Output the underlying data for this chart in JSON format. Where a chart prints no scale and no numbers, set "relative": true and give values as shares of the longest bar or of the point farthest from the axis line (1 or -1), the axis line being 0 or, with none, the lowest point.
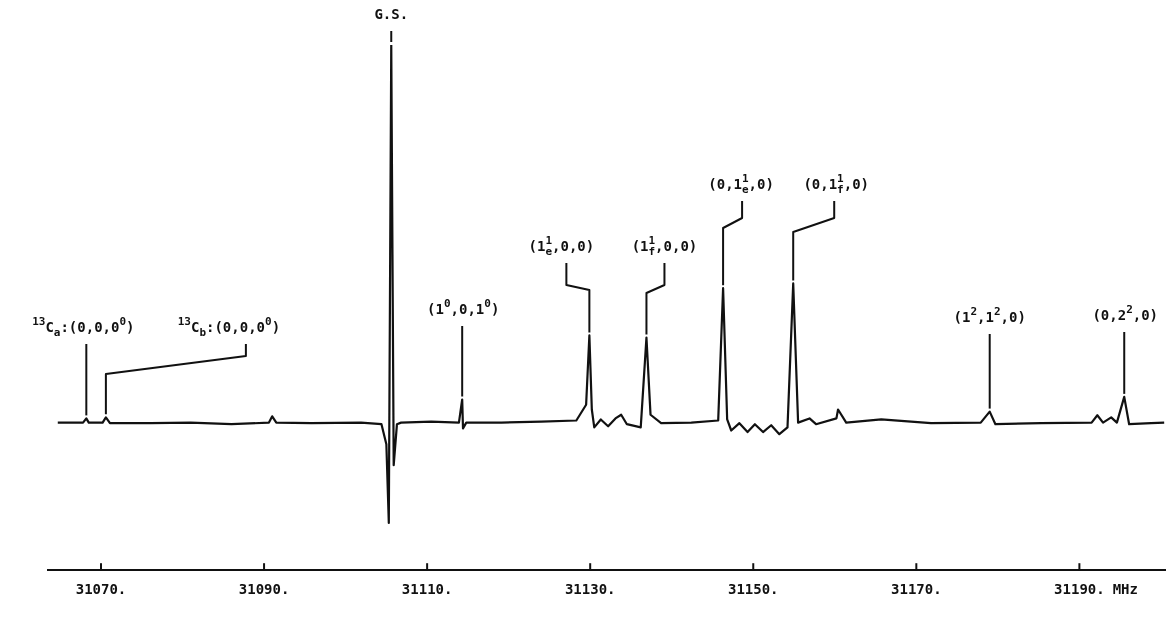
{
  "chart_data": {
    "type": "line",
    "relative": true,
    "color": "#111111",
    "marker": "none",
    "xlabel": "MHz",
    "xlim": [
      31063.5,
      31200.5
    ],
    "xticks": [
      {
        "value": 31070,
        "label": "31070."
      },
      {
        "value": 31090,
        "label": "31090."
      },
      {
        "value": 31110,
        "label": "31110."
      },
      {
        "value": 31130,
        "label": "31130."
      },
      {
        "value": 31150,
        "label": "31150."
      },
      {
        "value": 31170,
        "label": "31170."
      },
      {
        "value": 31190,
        "label": "31190."
      }
    ],
    "x": [
      31064.7,
      31067.8,
      31068.2,
      31068.5,
      31070.2,
      31070.6,
      31071.1,
      31076.1,
      31081.0,
      31086.0,
      31090.6,
      31091.0,
      31091.5,
      31095.8,
      31101.9,
      31104.4,
      31105.0,
      31105.3,
      31105.6,
      31105.9,
      31106.3,
      31106.8,
      31110.5,
      31113.9,
      31114.3,
      31114.4,
      31114.8,
      31119.1,
      31124.0,
      31128.3,
      31129.5,
      31129.9,
      31130.2,
      31130.5,
      31131.3,
      31132.2,
      31133.1,
      31133.8,
      31134.5,
      31136.2,
      31136.9,
      31137.4,
      31138.7,
      31142.4,
      31145.7,
      31146.3,
      31146.8,
      31147.3,
      31148.3,
      31149.3,
      31150.2,
      31151.2,
      31152.2,
      31153.2,
      31154.2,
      31154.9,
      31155.5,
      31156.9,
      31157.7,
      31160.2,
      31160.4,
      31161.4,
      31165.7,
      31171.8,
      31177.9,
      31179.0,
      31179.7,
      31185.3,
      31191.5,
      31192.2,
      31192.9,
      31193.9,
      31194.6,
      31195.5,
      31196.1,
      31198.8,
      31200.4
    ],
    "values": [
      0.281,
      0.281,
      0.289,
      0.281,
      0.281,
      0.291,
      0.28,
      0.28,
      0.281,
      0.278,
      0.281,
      0.293,
      0.281,
      0.28,
      0.281,
      0.278,
      0.24,
      0.09,
      1.0,
      0.2,
      0.278,
      0.281,
      0.283,
      0.281,
      0.325,
      0.27,
      0.281,
      0.281,
      0.283,
      0.285,
      0.315,
      0.447,
      0.306,
      0.272,
      0.287,
      0.274,
      0.289,
      0.296,
      0.278,
      0.272,
      0.443,
      0.296,
      0.28,
      0.281,
      0.285,
      0.537,
      0.287,
      0.266,
      0.28,
      0.263,
      0.278,
      0.263,
      0.276,
      0.259,
      0.272,
      0.546,
      0.281,
      0.289,
      0.278,
      0.289,
      0.306,
      0.281,
      0.287,
      0.28,
      0.281,
      0.302,
      0.278,
      0.28,
      0.281,
      0.295,
      0.281,
      0.291,
      0.281,
      0.33,
      0.278,
      0.28,
      0.281
    ],
    "annotations": [
      {
        "text": "$^{13}$C$_{a}$:(0,0,0$^{0}$)",
        "x": 31068.2,
        "y": 0.289
      },
      {
        "text": "$^{13}$C$_{b}$:(0,0,0$^{0}$)",
        "x": 31070.6,
        "y": 0.291
      },
      {
        "text": "G.S.",
        "x": 31105.6,
        "y": 1.0
      },
      {
        "text": "(1$^{0}$,0,1$^{0}$)",
        "x": 31114.3,
        "y": 0.325
      },
      {
        "text": "(1$^{1}$$_{e}$,0,0)",
        "x": 31129.9,
        "y": 0.447
      },
      {
        "text": "(1$^{1}$$_{f}$,0,0)",
        "x": 31136.9,
        "y": 0.443
      },
      {
        "text": "(0,1$^{1}$$_{e}$,0)",
        "x": 31146.3,
        "y": 0.537
      },
      {
        "text": "(0,1$^{1}$$_{f}$,0)",
        "x": 31154.9,
        "y": 0.546
      },
      {
        "text": "(1$^{2}$,1$^{2}$,0)",
        "x": 31179.0,
        "y": 0.302
      },
      {
        "text": "(0,2$^{2}$,0)",
        "x": 31195.5,
        "y": 0.33
      }
    ]
  }
}
